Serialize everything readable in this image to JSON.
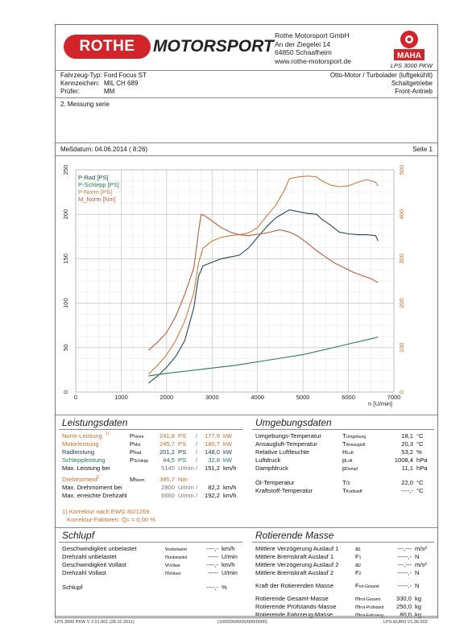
{
  "header": {
    "logo_left": "ROTHE",
    "logo_right": "MOTORSPORT",
    "company_lines": [
      "Rothe Motorsport GmbH",
      "An der Ziegelei 14",
      "64850 Schaafheim",
      "www.rothe-motorsport.de"
    ],
    "maha_logo": "MAHA",
    "lps_label": "LPS 3000 PKW"
  },
  "vehicle": {
    "left": [
      {
        "k": "Fahrzeug-Typ:",
        "v": "Ford Focus ST"
      },
      {
        "k": "Kennzeichen:",
        "v": "MIL CH 689"
      },
      {
        "k": "Prüfer:",
        "v": "MM"
      }
    ],
    "right": [
      "Otto-Motor / Turbolader (luftgekühlt)",
      "Schaltgetriebe",
      "Front-Antrieb"
    ],
    "note": "2. Messung serie"
  },
  "meta": {
    "date_label": "Meßdatum: 04.06.2014 ( 8:26)",
    "page_label": "Seite 1"
  },
  "colors": {
    "p_rad": "#1f4a55",
    "p_schlepp": "#2a7a52",
    "p_norm": "#d07a3a",
    "m_norm": "#b85c40"
  },
  "chart_data": {
    "type": "line",
    "legend": [
      "P-Rad [PS]",
      "P-Schlepp [PS]",
      "P-Norm [PS]",
      "M_Norm [Nm]"
    ],
    "legend_placement": "top-left",
    "xlabel": "n [U/min]",
    "xlim": [
      0,
      7000
    ],
    "x_ticks": [
      "0",
      "1000",
      "2000",
      "3000",
      "4000",
      "5000",
      "6000",
      "7000"
    ],
    "ylim_left": [
      0,
      250
    ],
    "y_ticks_left": [
      "0",
      "50",
      "100",
      "150",
      "200",
      "250"
    ],
    "ylim_right": [
      0,
      500
    ],
    "y_ticks_right": [
      "0",
      "100",
      "200",
      "300",
      "400",
      "500"
    ],
    "grid": true,
    "series": [
      {
        "name": "P-Rad [PS]",
        "axis": "left",
        "points": [
          [
            1600,
            10
          ],
          [
            1800,
            18
          ],
          [
            2000,
            28
          ],
          [
            2200,
            40
          ],
          [
            2400,
            58
          ],
          [
            2600,
            95
          ],
          [
            2700,
            130
          ],
          [
            2800,
            142
          ],
          [
            3000,
            146
          ],
          [
            3200,
            150
          ],
          [
            3400,
            152
          ],
          [
            3600,
            154
          ],
          [
            3800,
            162
          ],
          [
            4000,
            174
          ],
          [
            4200,
            186
          ],
          [
            4400,
            196
          ],
          [
            4600,
            202
          ],
          [
            4700,
            205
          ],
          [
            4900,
            203
          ],
          [
            5100,
            201
          ],
          [
            5300,
            200
          ],
          [
            5400,
            195
          ],
          [
            5600,
            188
          ],
          [
            5800,
            180
          ],
          [
            6000,
            178
          ],
          [
            6200,
            177
          ],
          [
            6400,
            177
          ],
          [
            6600,
            176
          ],
          [
            6650,
            170
          ]
        ]
      },
      {
        "name": "P-Schlepp [PS]",
        "axis": "left",
        "points": [
          [
            1600,
            18
          ],
          [
            2000,
            21
          ],
          [
            2500,
            24
          ],
          [
            3000,
            27
          ],
          [
            3500,
            30
          ],
          [
            4000,
            34
          ],
          [
            4500,
            38
          ],
          [
            5000,
            42
          ],
          [
            5500,
            48
          ],
          [
            6000,
            54
          ],
          [
            6500,
            60
          ],
          [
            6650,
            62
          ]
        ]
      },
      {
        "name": "P-Norm [PS]",
        "axis": "left",
        "points": [
          [
            1600,
            20
          ],
          [
            1800,
            30
          ],
          [
            2000,
            42
          ],
          [
            2200,
            58
          ],
          [
            2400,
            80
          ],
          [
            2600,
            112
          ],
          [
            2700,
            145
          ],
          [
            2800,
            162
          ],
          [
            3000,
            170
          ],
          [
            3200,
            174
          ],
          [
            3400,
            176
          ],
          [
            3600,
            177
          ],
          [
            3800,
            179
          ],
          [
            4000,
            185
          ],
          [
            4200,
            198
          ],
          [
            4400,
            210
          ],
          [
            4600,
            228
          ],
          [
            4700,
            240
          ],
          [
            4900,
            242
          ],
          [
            5100,
            243
          ],
          [
            5300,
            242
          ],
          [
            5400,
            238
          ],
          [
            5600,
            233
          ],
          [
            5800,
            231
          ],
          [
            6000,
            232
          ],
          [
            6200,
            236
          ],
          [
            6400,
            239
          ],
          [
            6600,
            236
          ],
          [
            6650,
            232
          ]
        ]
      },
      {
        "name": "M_Norm [Nm]",
        "axis": "right",
        "points": [
          [
            1600,
            94
          ],
          [
            1800,
            112
          ],
          [
            2000,
            134
          ],
          [
            2200,
            170
          ],
          [
            2400,
            220
          ],
          [
            2600,
            280
          ],
          [
            2700,
            360
          ],
          [
            2760,
            400
          ],
          [
            2850,
            396
          ],
          [
            3000,
            385
          ],
          [
            3200,
            370
          ],
          [
            3400,
            360
          ],
          [
            3600,
            354
          ],
          [
            3800,
            352
          ],
          [
            4000,
            355
          ],
          [
            4200,
            358
          ],
          [
            4400,
            363
          ],
          [
            4500,
            365
          ],
          [
            4700,
            360
          ],
          [
            4900,
            350
          ],
          [
            5100,
            335
          ],
          [
            5300,
            318
          ],
          [
            5500,
            304
          ],
          [
            5700,
            290
          ],
          [
            5900,
            280
          ],
          [
            6100,
            270
          ],
          [
            6300,
            262
          ],
          [
            6500,
            255
          ],
          [
            6650,
            246
          ]
        ]
      }
    ]
  },
  "leistung": {
    "title": "Leistungsdaten",
    "rows": [
      {
        "label": "Norm-Leistung",
        "mark": "1)",
        "sym": "P",
        "sub": "Norm",
        "v1": "241,8",
        "u1": "PS",
        "v2": "177,9",
        "u2": "kW",
        "cls": "orange"
      },
      {
        "label": "Motorleistung",
        "mark": "",
        "sym": "P",
        "sub": "Mot",
        "v1": "245,7",
        "u1": "PS",
        "v2": "180,7",
        "u2": "kW",
        "cls": "orange"
      },
      {
        "label": "Radleistung",
        "mark": "",
        "sym": "P",
        "sub": "Rad",
        "v1": "201,2",
        "u1": "PS",
        "v2": "148,0",
        "u2": "kW",
        "cls": "navy"
      },
      {
        "label": "Schleppleistung",
        "mark": "",
        "sym": "P",
        "sub": "Schlepp",
        "v1": "44,5",
        "u1": "PS",
        "v2": "32,8",
        "u2": "kW",
        "cls": "green"
      },
      {
        "label": "Max. Leistung bei",
        "mark": "",
        "sym": "",
        "sub": "",
        "v1": "5145",
        "u1": "U/min",
        "v2": "151,2",
        "u2": "km/h",
        "cls": ""
      }
    ],
    "rows2": [
      {
        "label": "Drehmoment",
        "mark": "1)",
        "sym": "M",
        "sub": "Norm",
        "v1": "395,7",
        "u1": "Nm",
        "v2": "",
        "u2": "",
        "cls": "orange"
      },
      {
        "label": "Max. Drehmoment bei",
        "mark": "",
        "sym": "",
        "sub": "",
        "v1": "2800",
        "u1": "U/min",
        "v2": "82,2",
        "u2": "km/h",
        "cls": ""
      },
      {
        "label": "Max. erreichte Drehzahl",
        "mark": "",
        "sym": "",
        "sub": "",
        "v1": "6660",
        "u1": "U/min",
        "v2": "192,2",
        "u2": "km/h",
        "cls": ""
      }
    ],
    "footnote1": "1) Korrektur nach EWG 80/1269",
    "footnote2": "Korrektur-Faktoren: Q",
    "footnote2_sub": "G",
    "footnote2_val": "=   0,00 %"
  },
  "umgebung": {
    "title": "Umgebungsdaten",
    "rows": [
      {
        "label": "Umgebungs-Temperatur",
        "sym": "T",
        "sub": "Umgebung",
        "v": "18,1",
        "u": "°C"
      },
      {
        "label": "Ansaugluft-Temperatur",
        "sym": "T",
        "sub": "Ansaugluft",
        "v": "20,3",
        "u": "°C"
      },
      {
        "label": "Relative Luftfeuchte",
        "sym": "H",
        "sub": "Luft",
        "v": "53,2",
        "u": "%"
      },
      {
        "label": "Luftdruck",
        "sym": "p",
        "sub": "Luft",
        "v": "1008,4",
        "u": "hPa"
      },
      {
        "label": "Dampfdruck",
        "sym": "p",
        "sub": "Dampf",
        "v": "11,1",
        "u": "hPa"
      },
      {
        "label": "Öl-Temperatur",
        "sym": "T",
        "sub": "Öl",
        "v": "22,0",
        "u": "°C"
      },
      {
        "label": "Kraftstoff-Temperatur",
        "sym": "T",
        "sub": "Kraftstoff",
        "v": "----,-",
        "u": "°C"
      }
    ]
  },
  "schlupf": {
    "title": "Schlupf",
    "rows": [
      {
        "label": "Geschwindigkeit unbelastet",
        "sym": "v",
        "sub": "unbelastet",
        "v": "----,-",
        "u": "km/h"
      },
      {
        "label": "Drehzahl unbelastet",
        "sym": "n",
        "sub": "unbelastet",
        "v": "-----",
        "u": "U/min"
      },
      {
        "label": "Geschwindigkeit Vollast",
        "sym": "v",
        "sub": "Vollast",
        "v": "----,-",
        "u": "km/h"
      },
      {
        "label": "Drehzahl Vollast",
        "sym": "n",
        "sub": "Vollast",
        "v": "-----",
        "u": "U/min"
      },
      {
        "label": "Schlupf",
        "sym": "",
        "sub": "",
        "v": "----,-",
        "u": "%"
      }
    ]
  },
  "masse": {
    "title": "Rotierende Masse",
    "rows": [
      {
        "label": "Mittlere Verzögerung Auslauf 1",
        "sym": "a",
        "sub": "1",
        "v": "---,---",
        "u": "m/s²"
      },
      {
        "label": "Mittlere Bremskraft Auslauf 1",
        "sym": "F",
        "sub": "1",
        "v": "-----,-",
        "u": "N"
      },
      {
        "label": "Mittlere Verzögerung Auslauf 2",
        "sym": "a",
        "sub": "2",
        "v": "---,---",
        "u": "m/s²"
      },
      {
        "label": "Mittlere Bremskraft Auslauf 2",
        "sym": "F",
        "sub": "2",
        "v": "-----,-",
        "u": "N"
      },
      {
        "label": "Kraft der Rotierenden Masse",
        "sym": "F",
        "sub": "rot-Gesamt",
        "v": "-----,-",
        "u": "N"
      },
      {
        "label": "Rotierende Gesamt-Masse",
        "sym": "m",
        "sub": "rot-Gesamt",
        "v": "330,0",
        "u": "kg"
      },
      {
        "label": "Rotierende Prüfstands-Masse",
        "sym": "m",
        "sub": "rot-Prüfstand",
        "v": "250,0",
        "u": "kg"
      },
      {
        "label": "Rotierende Fahrzeug-Masse",
        "sym": "m",
        "sub": "rot-Fahrzeug",
        "v": "80,0",
        "u": "kg"
      }
    ]
  },
  "footer": {
    "left": "LPS 3000 PKW V 2.01.001 (28.10.2011)",
    "center": "(100/000/0000/000/0000)",
    "right": "LPS-EURO V1.36.003"
  }
}
